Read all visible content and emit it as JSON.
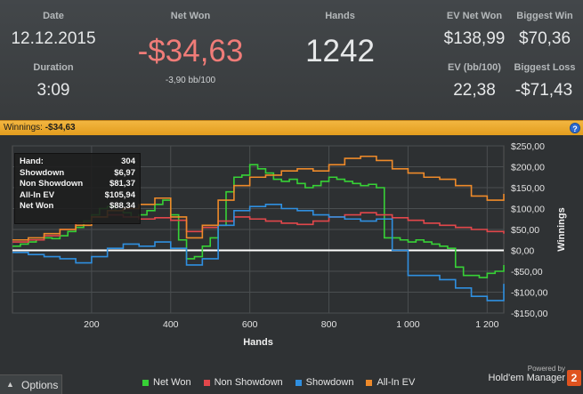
{
  "stats": {
    "date_label": "Date",
    "date_value": "12.12.2015",
    "duration_label": "Duration",
    "duration_value": "3:09",
    "net_won_label": "Net Won",
    "net_won_value": "-$34,63",
    "net_won_bb": "-3,90 bb/100",
    "hands_label": "Hands",
    "hands_value": "1242",
    "ev_net_won_label": "EV Net Won",
    "ev_net_won_value": "$138,99",
    "biggest_win_label": "Biggest Win",
    "biggest_win_value": "$70,36",
    "ev_bb_label": "EV (bb/100)",
    "ev_bb_value": "22,38",
    "biggest_loss_label": "Biggest Loss",
    "biggest_loss_value": "-$71,43"
  },
  "bar": {
    "label": "Winnings:",
    "value": "-$34,63",
    "help_glyph": "?"
  },
  "tooltip": {
    "rows": [
      {
        "label": "Hand:",
        "value": "304"
      },
      {
        "label": "Showdown",
        "value": "$6,97"
      },
      {
        "label": "Non Showdown",
        "value": "$81,37"
      },
      {
        "label": "All-In EV",
        "value": "$105,94"
      },
      {
        "label": "Net Won",
        "value": "$88,34"
      }
    ]
  },
  "footer": {
    "options_label": "Options",
    "powered_by": "Powered by",
    "brand": "Hold'em Manager",
    "brand_number": "2"
  },
  "colors": {
    "net_won": "#37d136",
    "non_showdown": "#e2474b",
    "showdown": "#2f8fe0",
    "all_in_ev": "#ee8a2a",
    "net_won_value_text": "#f07c78"
  },
  "chart_data": {
    "type": "line",
    "xlabel": "Hands",
    "ylabel": "Winnings",
    "xlim": [
      0,
      1242
    ],
    "ylim": [
      -150,
      250
    ],
    "x_ticks": [
      200,
      400,
      600,
      800,
      1000,
      1200
    ],
    "x_tick_labels": [
      "200",
      "400",
      "600",
      "800",
      "1 000",
      "1 200"
    ],
    "y_ticks": [
      250,
      200,
      150,
      100,
      50,
      0,
      -50,
      -100,
      -150
    ],
    "y_tick_labels": [
      "$250,00",
      "$200,00",
      "$150,00",
      "$100,00",
      "$50,00",
      "$0,00",
      "-$50,00",
      "-$100,00",
      "-$150,00"
    ],
    "grid": true,
    "legend_position": "bottom",
    "series": [
      {
        "name": "Net Won",
        "color": "#37d136",
        "x": [
          0,
          20,
          40,
          60,
          80,
          100,
          120,
          140,
          160,
          180,
          200,
          220,
          240,
          260,
          280,
          300,
          320,
          340,
          360,
          380,
          400,
          420,
          440,
          460,
          480,
          500,
          520,
          540,
          560,
          580,
          600,
          620,
          640,
          660,
          680,
          700,
          720,
          740,
          760,
          780,
          800,
          820,
          840,
          860,
          880,
          900,
          920,
          940,
          960,
          980,
          1000,
          1020,
          1040,
          1060,
          1080,
          1100,
          1120,
          1140,
          1160,
          1180,
          1200,
          1220,
          1242
        ],
        "y": [
          10,
          15,
          20,
          25,
          30,
          28,
          35,
          45,
          55,
          70,
          85,
          100,
          105,
          95,
          90,
          80,
          85,
          95,
          110,
          120,
          85,
          25,
          -20,
          -15,
          10,
          30,
          60,
          140,
          175,
          180,
          205,
          195,
          185,
          170,
          165,
          170,
          160,
          150,
          155,
          165,
          175,
          170,
          165,
          160,
          155,
          158,
          150,
          30,
          30,
          25,
          20,
          25,
          20,
          15,
          10,
          5,
          -40,
          -60,
          -60,
          -65,
          -55,
          -50,
          -35
        ]
      },
      {
        "name": "Non Showdown",
        "color": "#e2474b",
        "x": [
          0,
          40,
          80,
          120,
          160,
          200,
          240,
          280,
          320,
          360,
          400,
          440,
          480,
          520,
          560,
          600,
          640,
          680,
          720,
          760,
          800,
          840,
          880,
          920,
          960,
          1000,
          1040,
          1080,
          1120,
          1160,
          1200,
          1242
        ],
        "y": [
          20,
          25,
          35,
          50,
          65,
          80,
          85,
          80,
          75,
          78,
          72,
          45,
          55,
          70,
          80,
          75,
          70,
          65,
          62,
          70,
          80,
          85,
          90,
          85,
          78,
          72,
          65,
          60,
          55,
          50,
          45,
          40
        ]
      },
      {
        "name": "Showdown",
        "color": "#2f8fe0",
        "x": [
          0,
          40,
          80,
          120,
          160,
          200,
          240,
          280,
          320,
          360,
          400,
          440,
          480,
          520,
          560,
          600,
          640,
          680,
          720,
          760,
          800,
          840,
          880,
          920,
          960,
          1000,
          1040,
          1080,
          1120,
          1160,
          1200,
          1242
        ],
        "y": [
          -5,
          -10,
          -15,
          -20,
          -30,
          -15,
          5,
          15,
          10,
          20,
          5,
          -35,
          -20,
          60,
          95,
          105,
          110,
          100,
          95,
          85,
          80,
          75,
          70,
          75,
          0,
          -60,
          -60,
          -70,
          -90,
          -110,
          -120,
          -80
        ]
      },
      {
        "name": "All-In EV",
        "color": "#ee8a2a",
        "x": [
          0,
          40,
          80,
          120,
          160,
          200,
          240,
          280,
          320,
          360,
          400,
          440,
          480,
          520,
          560,
          600,
          640,
          680,
          720,
          760,
          800,
          840,
          880,
          920,
          960,
          1000,
          1040,
          1080,
          1120,
          1160,
          1200,
          1242
        ],
        "y": [
          25,
          30,
          40,
          50,
          60,
          80,
          95,
          100,
          110,
          125,
          80,
          30,
          60,
          120,
          155,
          175,
          180,
          190,
          195,
          190,
          205,
          220,
          225,
          215,
          195,
          185,
          175,
          170,
          155,
          130,
          120,
          135
        ]
      }
    ]
  }
}
